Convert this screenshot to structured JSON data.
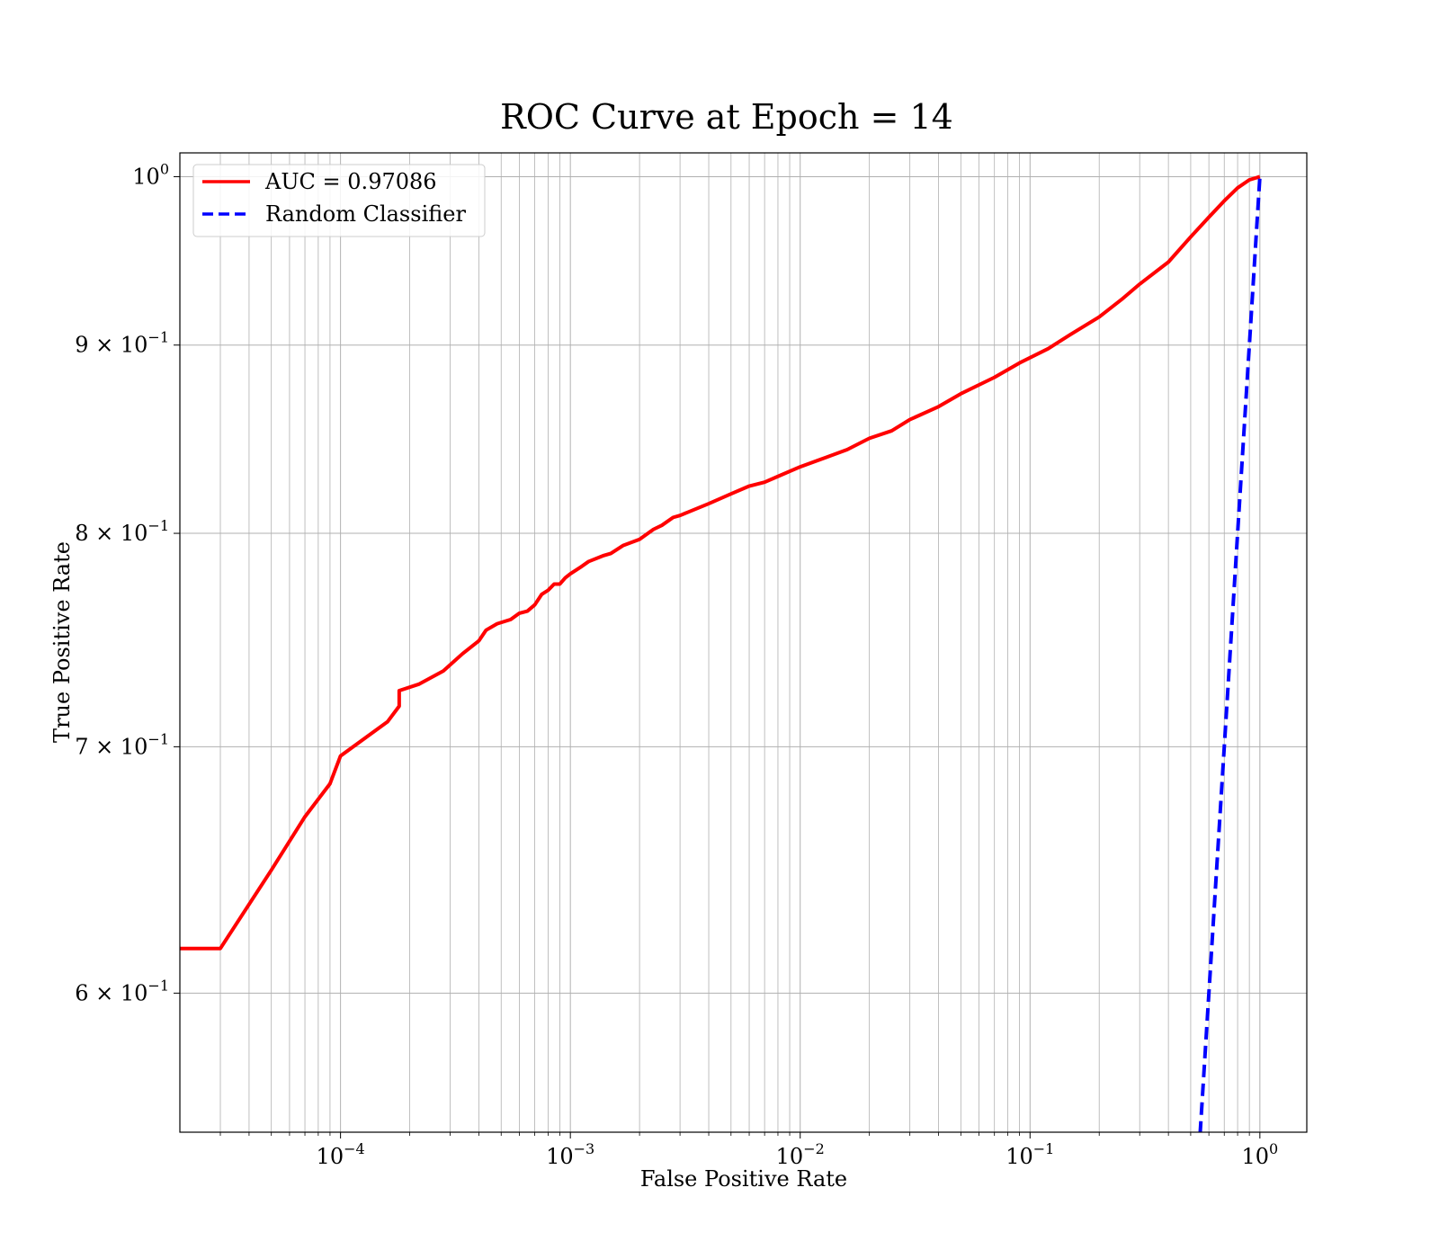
{
  "chart_data": {
    "type": "line",
    "title": "ROC Curve at Epoch = 14",
    "xlabel": "False Positive Rate",
    "ylabel": "True Positive Rate",
    "xscale": "log",
    "yscale": "log",
    "xlim": [
      2e-05,
      1.6
    ],
    "ylim": [
      0.55,
      1.015
    ],
    "grid": true,
    "grid_minor": true,
    "legend_position": "top-left",
    "x_ticks": [
      {
        "value": 0.0001,
        "base": "10",
        "exp": "−4"
      },
      {
        "value": 0.001,
        "base": "10",
        "exp": "−3"
      },
      {
        "value": 0.01,
        "base": "10",
        "exp": "−2"
      },
      {
        "value": 0.1,
        "base": "10",
        "exp": "−1"
      },
      {
        "value": 1,
        "base": "10",
        "exp": "0"
      }
    ],
    "y_ticks": [
      {
        "value": 1.0,
        "mant": "",
        "base": "10",
        "exp": "0"
      },
      {
        "value": 0.9,
        "mant": "9 × ",
        "base": "10",
        "exp": "−1"
      },
      {
        "value": 0.8,
        "mant": "8 × ",
        "base": "10",
        "exp": "−1"
      },
      {
        "value": 0.7,
        "mant": "7 × ",
        "base": "10",
        "exp": "−1"
      },
      {
        "value": 0.6,
        "mant": "6 × ",
        "base": "10",
        "exp": "−1"
      }
    ],
    "series": [
      {
        "name": "AUC = 0.97086",
        "color": "#ff0000",
        "style": "solid",
        "x": [
          2e-05,
          3e-05,
          5e-05,
          7e-05,
          9e-05,
          0.0001,
          0.00016,
          0.00018,
          0.00018,
          0.00022,
          0.00028,
          0.00034,
          0.0004,
          0.00043,
          0.00048,
          0.00055,
          0.0006,
          0.00065,
          0.0007,
          0.00075,
          0.0008,
          0.00085,
          0.0009,
          0.00095,
          0.001,
          0.0011,
          0.0012,
          0.0014,
          0.0015,
          0.0017,
          0.002,
          0.0023,
          0.0025,
          0.0028,
          0.003,
          0.004,
          0.005,
          0.006,
          0.007,
          0.008,
          0.01,
          0.013,
          0.016,
          0.02,
          0.025,
          0.03,
          0.04,
          0.05,
          0.07,
          0.09,
          0.12,
          0.15,
          0.2,
          0.25,
          0.3,
          0.4,
          0.5,
          0.6,
          0.7,
          0.8,
          0.9,
          1.0
        ],
        "y": [
          0.617,
          0.617,
          0.648,
          0.67,
          0.684,
          0.696,
          0.711,
          0.718,
          0.725,
          0.728,
          0.734,
          0.742,
          0.748,
          0.753,
          0.756,
          0.758,
          0.761,
          0.762,
          0.765,
          0.77,
          0.772,
          0.775,
          0.775,
          0.778,
          0.78,
          0.783,
          0.786,
          0.789,
          0.79,
          0.794,
          0.797,
          0.802,
          0.804,
          0.808,
          0.809,
          0.815,
          0.82,
          0.824,
          0.826,
          0.829,
          0.834,
          0.839,
          0.843,
          0.849,
          0.853,
          0.859,
          0.866,
          0.873,
          0.882,
          0.89,
          0.898,
          0.906,
          0.916,
          0.926,
          0.935,
          0.948,
          0.963,
          0.975,
          0.985,
          0.993,
          0.998,
          1.0
        ]
      },
      {
        "name": "Random Classifier",
        "color": "#0000ff",
        "style": "dashed",
        "x": [
          0.5,
          1.0
        ],
        "y": [
          0.5,
          1.0
        ]
      }
    ]
  }
}
